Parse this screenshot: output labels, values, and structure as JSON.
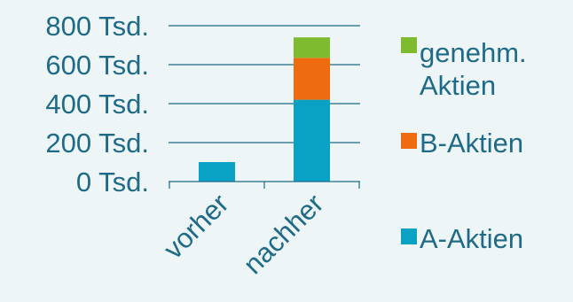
{
  "chart_data": {
    "type": "bar",
    "stacked": true,
    "categories": [
      "vorher",
      "nachher"
    ],
    "series": [
      {
        "name": "A-Aktien",
        "color": "#0aa2c4",
        "values": [
          100,
          420
        ]
      },
      {
        "name": "B-Aktien",
        "color": "#ef6b0f",
        "values": [
          0,
          215
        ]
      },
      {
        "name": "genehm. Aktien",
        "legend_lines": [
          "genehm.",
          "Aktien"
        ],
        "color": "#7fbb2f",
        "values": [
          0,
          105
        ]
      }
    ],
    "yticks": [
      "0 Tsd.",
      "200 Tsd.",
      "400 Tsd.",
      "600 Tsd.",
      "800 Tsd."
    ],
    "ytick_values": [
      0,
      200,
      400,
      600,
      800
    ],
    "ylim": [
      0,
      800
    ],
    "grid": true,
    "legend_position": "right",
    "title": "",
    "xlabel": "",
    "ylabel": ""
  }
}
